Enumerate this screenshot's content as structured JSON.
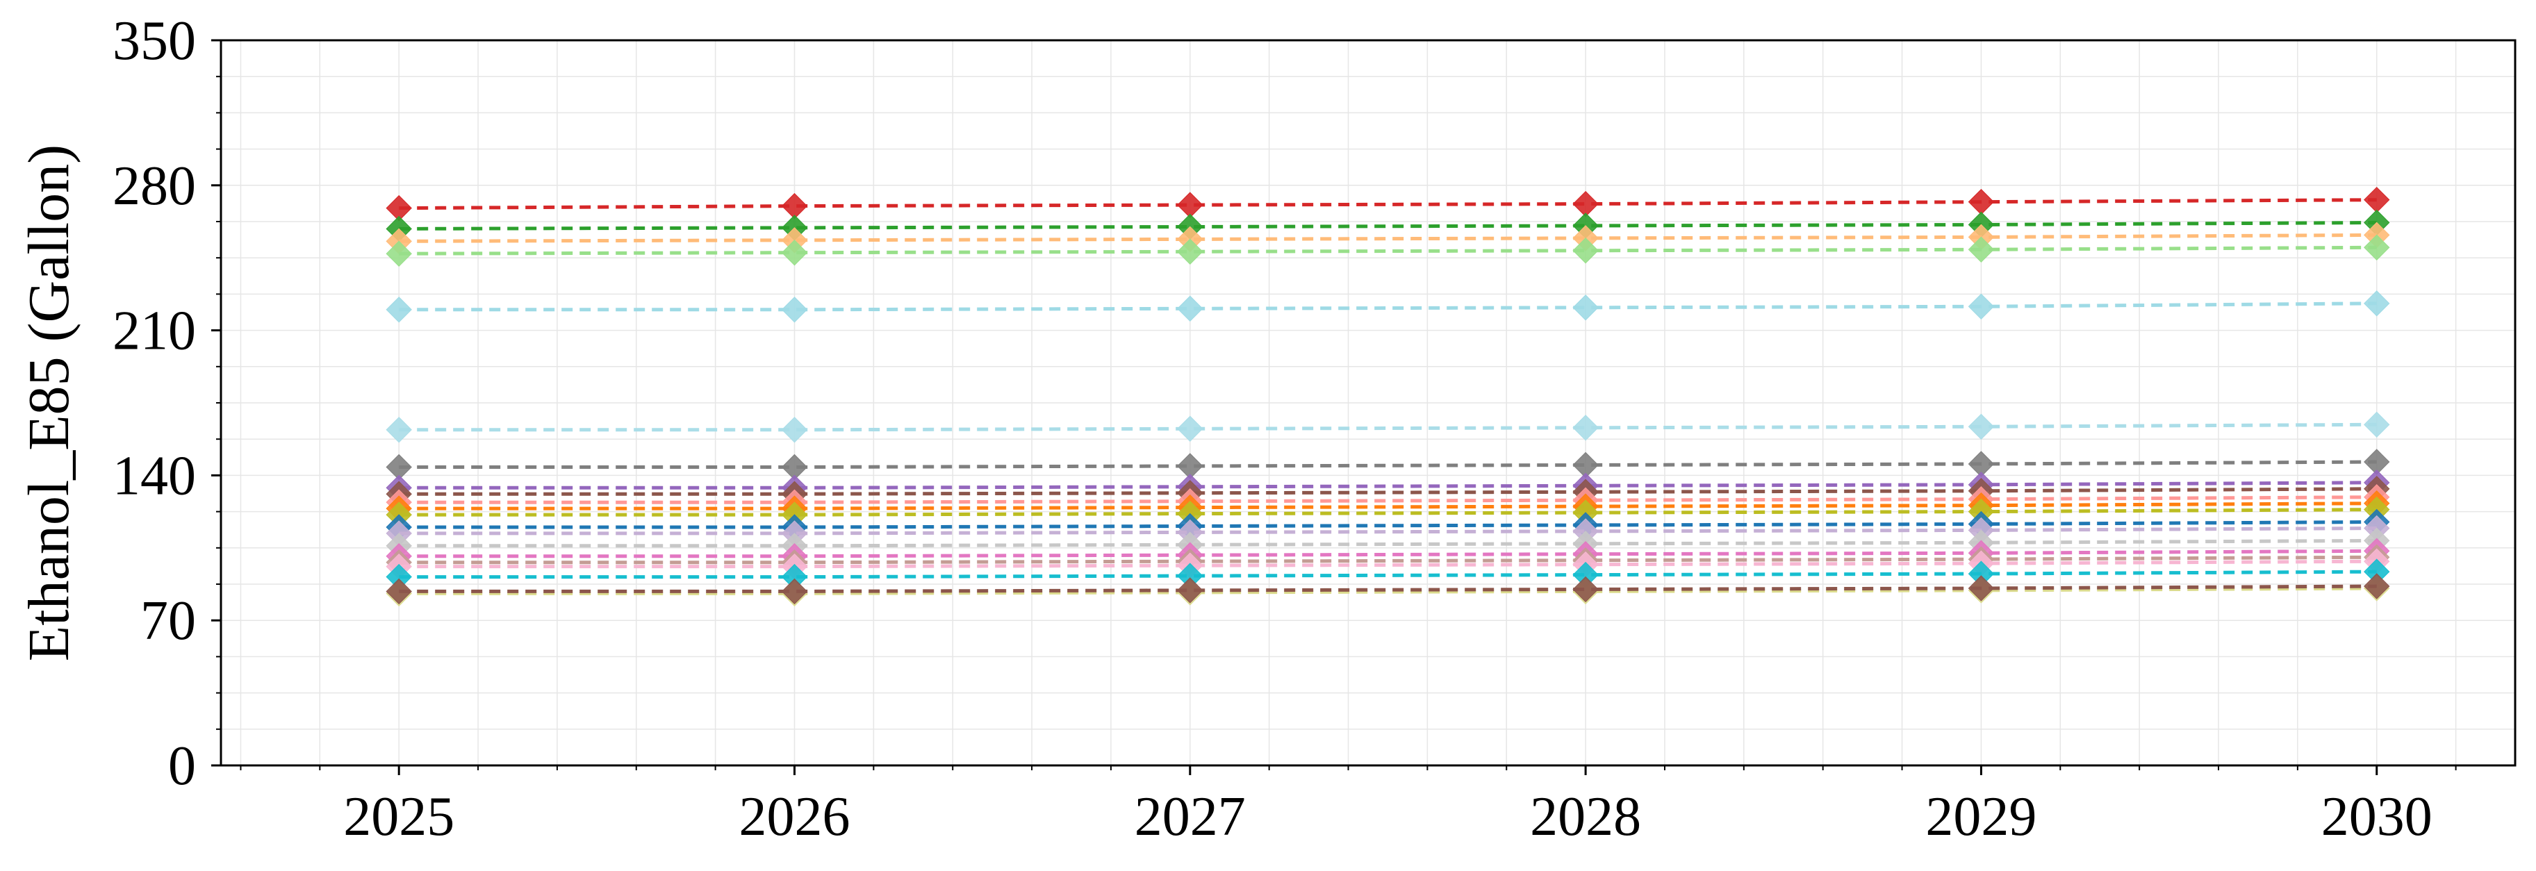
{
  "chart_data": {
    "type": "line",
    "title": "",
    "xlabel": "",
    "ylabel": "Ethanol_E85 (Gallon)",
    "x": [
      2025,
      2026,
      2027,
      2028,
      2029,
      2030
    ],
    "x_ticks": [
      "2025",
      "2026",
      "2027",
      "2028",
      "2029",
      "2030"
    ],
    "xlim": [
      2024.55,
      2030.35
    ],
    "ylim": [
      0,
      350
    ],
    "y_ticks": [
      "0",
      "70",
      "140",
      "210",
      "280",
      "350"
    ],
    "grid": true,
    "legend": "none",
    "line_style": "dashed",
    "marker": "diamond",
    "series": [
      {
        "color": "#d62728",
        "values": [
          269,
          270,
          270.5,
          271,
          272,
          273
        ]
      },
      {
        "color": "#2ca02c",
        "values": [
          259,
          259.5,
          260,
          260.5,
          261,
          262
        ]
      },
      {
        "color": "#ffbb78",
        "values": [
          253,
          253.5,
          254,
          254.5,
          255,
          256
        ]
      },
      {
        "color": "#98df8a",
        "values": [
          247,
          247.5,
          248,
          248.5,
          249,
          250
        ]
      },
      {
        "color": "#9edae5",
        "values": [
          220,
          220,
          220.5,
          221,
          221.5,
          223
        ]
      },
      {
        "color": "#aadde8",
        "values": [
          162,
          162,
          162.5,
          163,
          163.5,
          164.5
        ]
      },
      {
        "color": "#7f7f7f",
        "values": [
          144,
          144,
          144.5,
          145,
          145.5,
          146.5
        ]
      },
      {
        "color": "#9467bd",
        "values": [
          134,
          134,
          134.5,
          135,
          135.5,
          136.5
        ]
      },
      {
        "color": "#8c564b",
        "values": [
          131,
          131,
          131.5,
          132,
          132.5,
          133.5
        ]
      },
      {
        "color": "#ff9896",
        "values": [
          127,
          127,
          127.5,
          128,
          128.5,
          129.5
        ]
      },
      {
        "color": "#ff7f0e",
        "values": [
          124,
          124,
          124.5,
          125,
          125.5,
          126.5
        ]
      },
      {
        "color": "#bcbd22",
        "values": [
          121,
          121,
          121.5,
          122,
          122.5,
          123.5
        ]
      },
      {
        "color": "#1f77b4",
        "values": [
          115,
          115,
          115.5,
          116,
          116.5,
          117.5
        ]
      },
      {
        "color": "#c5b0d5",
        "values": [
          112,
          112,
          112.5,
          113,
          113.5,
          114.5
        ]
      },
      {
        "color": "#c7c7c7",
        "values": [
          106,
          106,
          106.5,
          107,
          107.5,
          108.5
        ]
      },
      {
        "color": "#e377c2",
        "values": [
          101,
          101,
          101.5,
          102,
          102.5,
          103.5
        ]
      },
      {
        "color": "#c49c94",
        "values": [
          98,
          98,
          98.5,
          99,
          99.5,
          100.5
        ]
      },
      {
        "color": "#f7b6d2",
        "values": [
          96,
          96,
          96.5,
          97,
          97.5,
          98.5
        ]
      },
      {
        "color": "#17becf",
        "values": [
          91,
          91,
          91.5,
          92,
          92.5,
          93.5
        ]
      },
      {
        "color": "#dbdb8d",
        "values": [
          83,
          83,
          83.5,
          84,
          84.5,
          85.5
        ]
      },
      {
        "color": "#8c564b",
        "values": [
          84,
          84,
          84.5,
          85,
          85.5,
          86.5
        ]
      }
    ]
  }
}
